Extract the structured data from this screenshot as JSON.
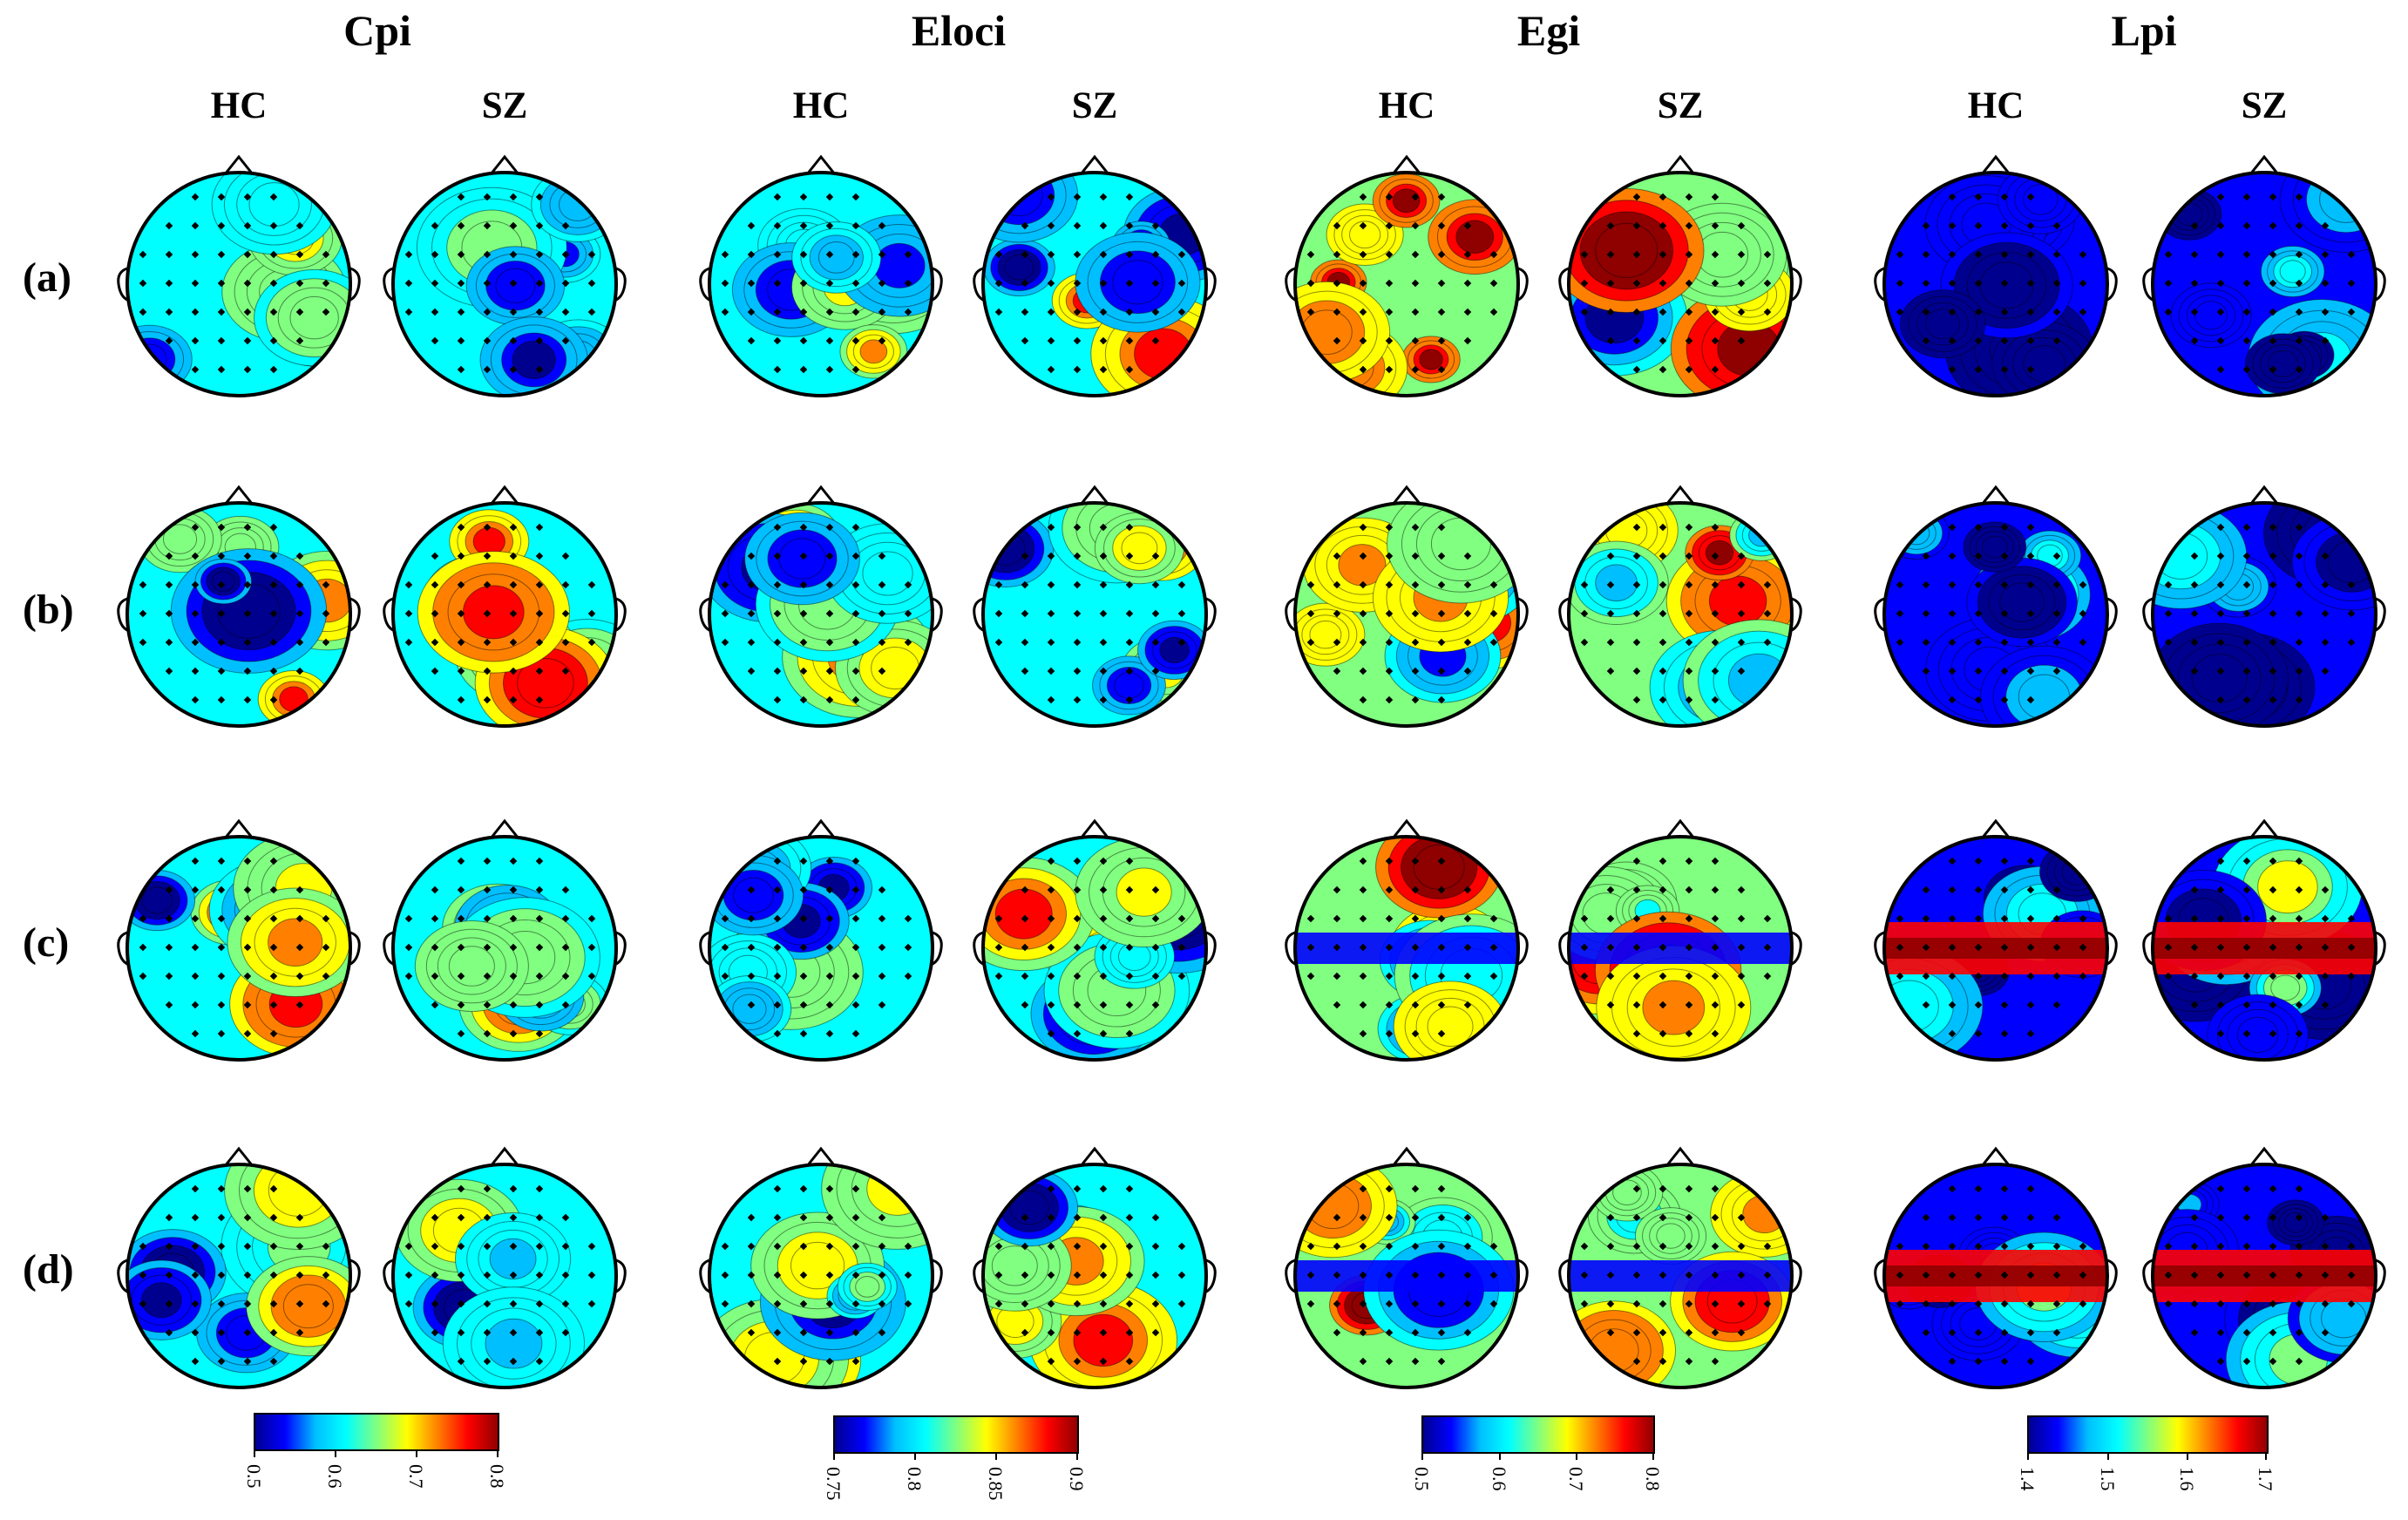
{
  "figure": {
    "metrics": [
      {
        "name": "Cpi",
        "ticks": [
          "0.5",
          "0.6",
          "0.7",
          "0.8"
        ]
      },
      {
        "name": "Eloci",
        "ticks": [
          "0.75",
          "0.8",
          "0.85",
          "0.9"
        ]
      },
      {
        "name": "Egi",
        "ticks": [
          "0.5",
          "0.6",
          "0.7",
          "0.8"
        ]
      },
      {
        "name": "Lpi",
        "ticks": [
          "1.4",
          "1.5",
          "1.6",
          "1.7"
        ]
      }
    ],
    "groups": [
      "HC",
      "SZ"
    ],
    "rows": [
      "(a)",
      "(b)",
      "(c)",
      "(d)"
    ],
    "colormap": [
      "#00008f",
      "#0000ff",
      "#00bfff",
      "#00ffff",
      "#80ff80",
      "#ffff00",
      "#ff8000",
      "#ff0000",
      "#8f0000"
    ]
  }
}
